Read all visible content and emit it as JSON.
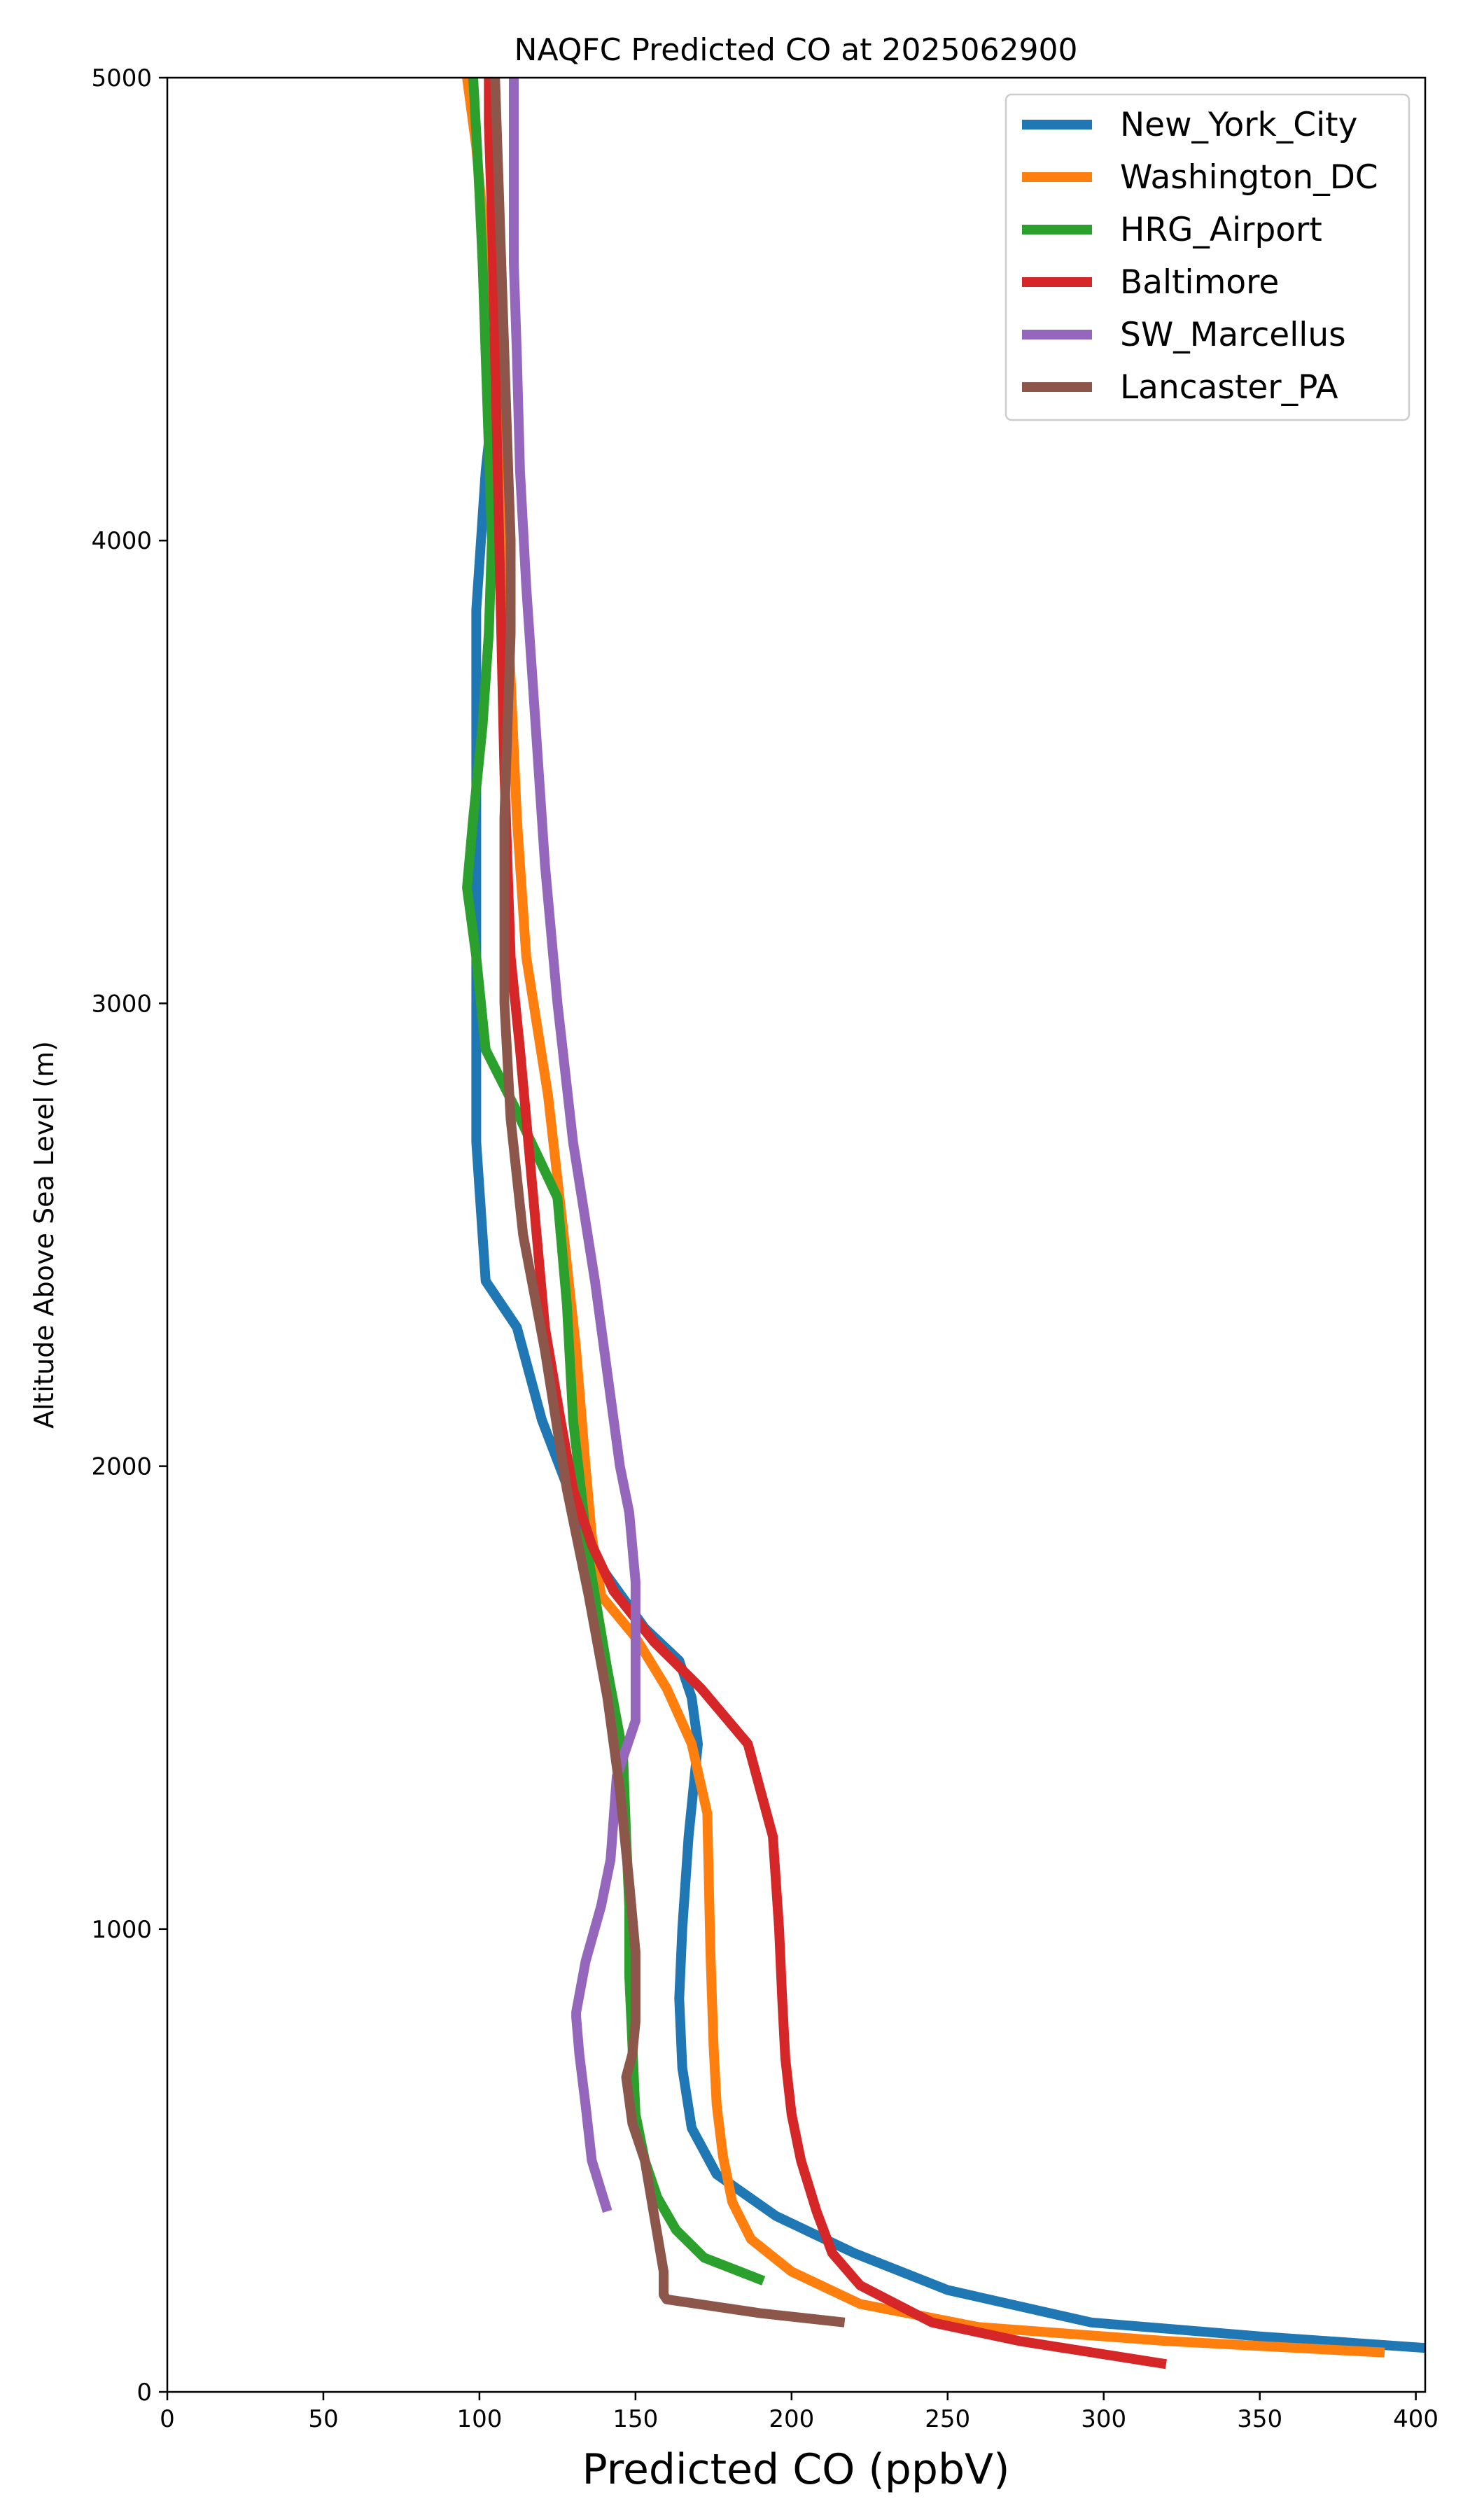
{
  "chart_data": {
    "type": "line",
    "title": "NAQFC Predicted CO at 2025062900",
    "xlabel": "Predicted CO (ppbV)",
    "ylabel": "Altitude Above Sea Level (m)",
    "xlim": [
      0,
      403
    ],
    "ylim": [
      0,
      5000
    ],
    "xticks": [
      0,
      50,
      100,
      150,
      200,
      250,
      300,
      350,
      400
    ],
    "yticks": [
      0,
      1000,
      2000,
      3000,
      4000,
      5000
    ],
    "grid": false,
    "legend_position": "top-right",
    "series": [
      {
        "name": "New_York_City",
        "color": "#1f77b4",
        "x": [
          403,
          350,
          296,
          250,
          220,
          195,
          176,
          168,
          165,
          164,
          165,
          167,
          170,
          168,
          164,
          153,
          137,
          120,
          112,
          102,
          99,
          99,
          99,
          99,
          102,
          106
        ],
        "y": [
          95,
          120,
          150,
          220,
          300,
          380,
          470,
          570,
          700,
          850,
          1000,
          1200,
          1400,
          1500,
          1580,
          1650,
          1800,
          2100,
          2300,
          2400,
          2700,
          3000,
          3500,
          3850,
          4150,
          4400
        ]
      },
      {
        "name": "Washington_DC",
        "color": "#ff7f0e",
        "x": [
          390,
          320,
          260,
          222,
          200,
          187,
          181,
          178,
          176,
          175,
          174,
          173,
          168,
          160,
          150,
          139,
          136,
          134,
          131,
          127,
          122,
          115,
          112,
          110,
          108,
          106,
          101,
          99,
          96
        ],
        "y": [
          85,
          110,
          140,
          190,
          260,
          330,
          410,
          510,
          620,
          750,
          950,
          1250,
          1400,
          1520,
          1630,
          1720,
          1850,
          2000,
          2250,
          2500,
          2800,
          3100,
          3400,
          3700,
          4000,
          4400,
          4700,
          4850,
          5000
        ]
      },
      {
        "name": "HRG_Airport",
        "color": "#2ca02c",
        "x": [
          191,
          172,
          163,
          157,
          153,
          150,
          149,
          148,
          148,
          147,
          146,
          141,
          135,
          130,
          128,
          125,
          111,
          102,
          99,
          96,
          98,
          101,
          103,
          104,
          103,
          102,
          101,
          100,
          99,
          98
        ],
        "y": [
          240,
          290,
          350,
          420,
          500,
          600,
          750,
          900,
          1050,
          1200,
          1380,
          1560,
          1800,
          2100,
          2350,
          2580,
          2780,
          2900,
          3100,
          3250,
          3400,
          3600,
          3800,
          4000,
          4200,
          4400,
          4600,
          4750,
          4880,
          5000
        ]
      },
      {
        "name": "Baltimore",
        "color": "#d62728",
        "x": [
          320,
          273,
          245,
          222,
          213,
          208,
          203,
          200,
          198,
          197,
          196,
          194,
          186,
          171,
          156,
          143,
          136,
          130,
          126,
          121,
          117,
          113,
          110,
          109,
          108,
          107,
          106,
          105,
          104,
          103,
          103
        ],
        "y": [
          60,
          110,
          150,
          230,
          300,
          390,
          500,
          600,
          720,
          850,
          1000,
          1200,
          1400,
          1520,
          1620,
          1730,
          1830,
          1950,
          2100,
          2300,
          2600,
          2900,
          3100,
          3300,
          3500,
          3800,
          4100,
          4400,
          4700,
          4900,
          5000
        ]
      },
      {
        "name": "SW_Marcellus",
        "color": "#9467bd",
        "x": [
          141,
          136,
          134,
          132,
          131,
          131,
          134,
          139,
          142,
          144,
          150,
          150,
          150,
          148,
          145,
          142,
          137,
          130,
          125,
          121,
          118,
          115,
          113,
          112,
          111,
          111,
          111,
          111
        ],
        "y": [
          390,
          500,
          620,
          730,
          810,
          820,
          930,
          1050,
          1150,
          1330,
          1450,
          1620,
          1750,
          1900,
          2000,
          2150,
          2400,
          2700,
          3000,
          3300,
          3600,
          3900,
          4150,
          4400,
          4600,
          4800,
          4950,
          5000
        ]
      },
      {
        "name": "Lancaster_PA",
        "color": "#8c564b",
        "x": [
          217,
          190,
          160,
          159,
          159,
          156,
          153,
          149,
          147,
          149,
          150,
          150,
          148,
          145,
          141,
          135,
          128,
          121,
          114,
          110,
          108,
          108,
          108,
          109,
          110,
          110,
          109,
          108,
          107,
          106,
          105
        ],
        "y": [
          150,
          170,
          200,
          210,
          260,
          380,
          500,
          580,
          680,
          730,
          800,
          950,
          1100,
          1300,
          1500,
          1720,
          1950,
          2250,
          2500,
          2750,
          3000,
          3200,
          3400,
          3600,
          3800,
          4000,
          4200,
          4400,
          4600,
          4800,
          5000
        ]
      }
    ]
  }
}
